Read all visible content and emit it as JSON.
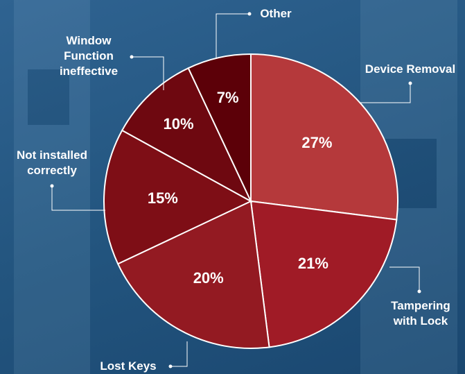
{
  "chart_data": {
    "type": "pie",
    "categories": [
      "Device Removal",
      "Tampering with Lock",
      "Lost Keys",
      "Not installed correctly",
      "Window Function ineffective",
      "Other"
    ],
    "values": [
      27,
      21,
      20,
      15,
      10,
      7
    ],
    "value_labels": [
      "27%",
      "21%",
      "20%",
      "15%",
      "10%",
      "7%"
    ],
    "colors": [
      "#b5393b",
      "#a01b26",
      "#931a22",
      "#7e0e16",
      "#6e0810",
      "#5c0008"
    ]
  }
}
